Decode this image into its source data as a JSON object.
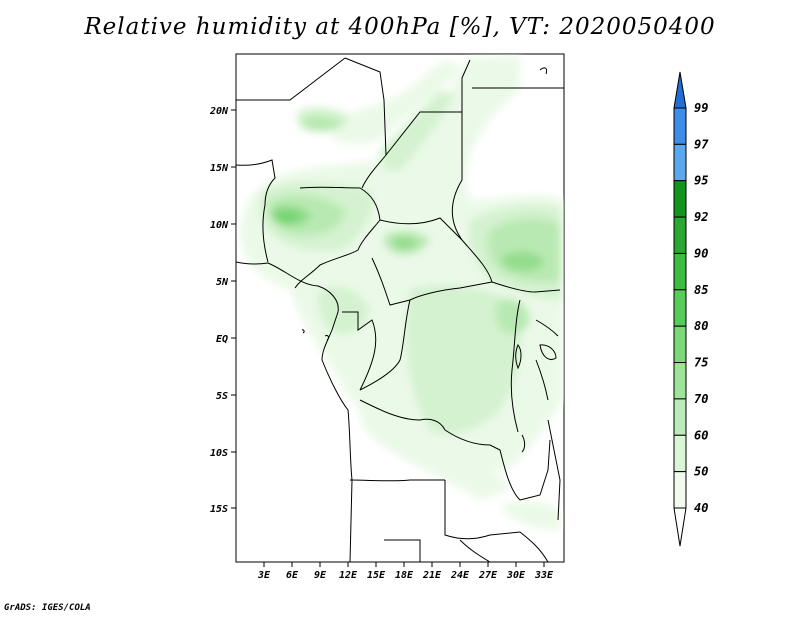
{
  "title": "Relative humidity at 400hPa [%], VT: 2020050400",
  "credit": "GrADS: IGES/COLA",
  "lat_labels": [
    "20N",
    "15N",
    "10N",
    "5N",
    "EQ",
    "5S",
    "10S",
    "15S"
  ],
  "lon_labels": [
    "3E",
    "6E",
    "9E",
    "12E",
    "15E",
    "18E",
    "21E",
    "24E",
    "27E",
    "30E",
    "33E"
  ],
  "colorbar": {
    "levels": [
      "99",
      "97",
      "95",
      "92",
      "90",
      "85",
      "80",
      "75",
      "70",
      "60",
      "50",
      "40"
    ],
    "colors": [
      "#1f6fd6",
      "#3d8ee8",
      "#5aa9ee",
      "#13941c",
      "#2aa832",
      "#3cbc41",
      "#58cc5a",
      "#7ad877",
      "#9de39a",
      "#bdecba",
      "#daf6d6",
      "#f0fbee"
    ]
  },
  "map": {
    "lon_range": [
      0,
      35
    ],
    "lat_range": [
      -20,
      25
    ],
    "land_color": "#ffffff",
    "border_color": "#000000"
  }
}
